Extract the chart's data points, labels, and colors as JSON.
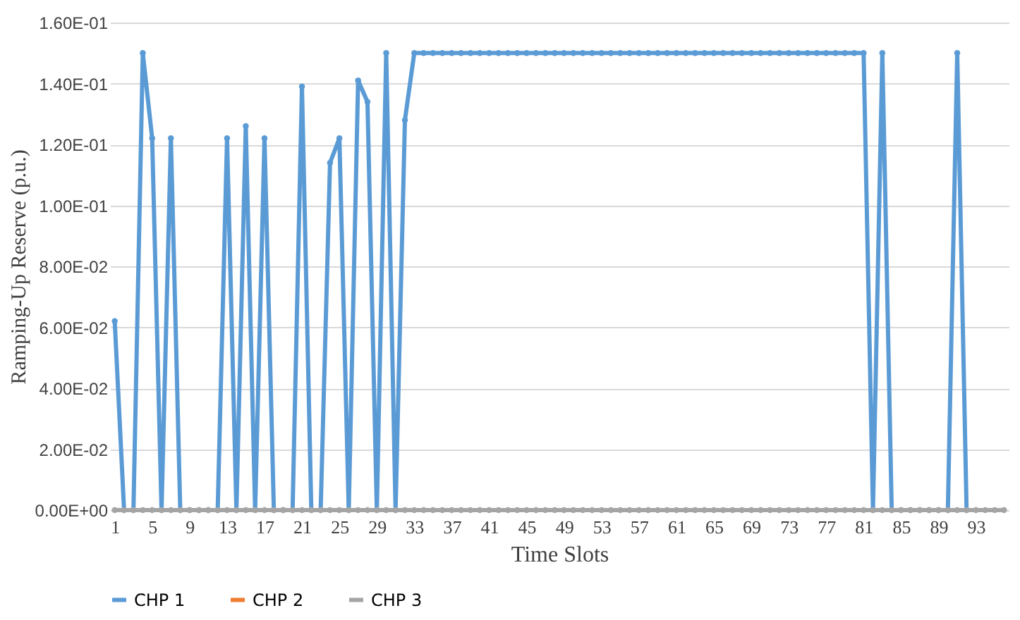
{
  "chart_data": {
    "type": "line",
    "xlabel": "Time Slots",
    "ylabel": "Ramping-Up Reserve (p.u.)",
    "categories": [
      "1",
      null,
      null,
      null,
      "5",
      null,
      null,
      null,
      "9",
      null,
      null,
      null,
      "13",
      null,
      null,
      null,
      "17",
      null,
      null,
      null,
      "21",
      null,
      null,
      null,
      "25",
      null,
      null,
      null,
      "29",
      null,
      null,
      null,
      "33",
      null,
      null,
      null,
      "37",
      null,
      null,
      null,
      "41",
      null,
      null,
      null,
      "45",
      null,
      null,
      null,
      "49",
      null,
      null,
      null,
      "53",
      null,
      null,
      null,
      "57",
      null,
      null,
      null,
      "61",
      null,
      null,
      null,
      "65",
      null,
      null,
      null,
      "69",
      null,
      null,
      null,
      "73",
      null,
      null,
      null,
      "77",
      null,
      null,
      null,
      "81",
      null,
      null,
      null,
      "85",
      null,
      null,
      null,
      "89",
      null,
      null,
      null,
      "93",
      null,
      null,
      null
    ],
    "series": [
      {
        "name": "CHP 1",
        "color": "#5b9bd5",
        "values": [
          0.062,
          0,
          0,
          0.15,
          0.122,
          0,
          0.122,
          0,
          0,
          0,
          0,
          0,
          0.122,
          0,
          0.126,
          0,
          0.122,
          0,
          0,
          0,
          0.139,
          0,
          0,
          0.114,
          0.122,
          0,
          0.141,
          0.134,
          0,
          0.15,
          0,
          0.128,
          0.15,
          0.15,
          0.15,
          0.15,
          0.15,
          0.15,
          0.15,
          0.15,
          0.15,
          0.15,
          0.15,
          0.15,
          0.15,
          0.15,
          0.15,
          0.15,
          0.15,
          0.15,
          0.15,
          0.15,
          0.15,
          0.15,
          0.15,
          0.15,
          0.15,
          0.15,
          0.15,
          0.15,
          0.15,
          0.15,
          0.15,
          0.15,
          0.15,
          0.15,
          0.15,
          0.15,
          0.15,
          0.15,
          0.15,
          0.15,
          0.15,
          0.15,
          0.15,
          0.15,
          0.15,
          0.15,
          0.15,
          0.15,
          0.15,
          0,
          0.15,
          0,
          0,
          0,
          0,
          0,
          0,
          0,
          0.15,
          0,
          null,
          null,
          null,
          null
        ]
      },
      {
        "name": "CHP 2",
        "color": "#ed7d31",
        "values": [
          null,
          null,
          null,
          null,
          null,
          null,
          null,
          null,
          null,
          null,
          null,
          null,
          null,
          null,
          null,
          null,
          null,
          null,
          null,
          null,
          null,
          null,
          null,
          null,
          null,
          null,
          null,
          null,
          null,
          null,
          null,
          null,
          null,
          null,
          null,
          null,
          null,
          null,
          null,
          null,
          null,
          null,
          null,
          null,
          null,
          null,
          null,
          null,
          null,
          null,
          null,
          null,
          null,
          null,
          null,
          null,
          null,
          null,
          null,
          null,
          null,
          null,
          null,
          null,
          null,
          null,
          null,
          null,
          null,
          null,
          null,
          null,
          null,
          null,
          null,
          null,
          null,
          null,
          null,
          null,
          null,
          null,
          null,
          null,
          null,
          null,
          null,
          null,
          null,
          null,
          null,
          null,
          null,
          null,
          null,
          null
        ]
      },
      {
        "name": "CHP 3",
        "color": "#a5a5a5",
        "values": [
          0,
          0,
          0,
          0,
          0,
          0,
          0,
          0,
          0,
          0,
          0,
          0,
          0,
          0,
          0,
          0,
          0,
          0,
          0,
          0,
          0,
          0,
          0,
          0,
          0,
          0,
          0,
          0,
          0,
          0,
          0,
          0,
          0,
          0,
          0,
          0,
          0,
          0,
          0,
          0,
          0,
          0,
          0,
          0,
          0,
          0,
          0,
          0,
          0,
          0,
          0,
          0,
          0,
          0,
          0,
          0,
          0,
          0,
          0,
          0,
          0,
          0,
          0,
          0,
          0,
          0,
          0,
          0,
          0,
          0,
          0,
          0,
          0,
          0,
          0,
          0,
          0,
          0,
          0,
          0,
          0,
          0,
          0,
          0,
          0,
          0,
          0,
          0,
          0,
          0,
          0,
          0,
          0,
          0,
          0,
          0
        ]
      }
    ],
    "ylim": [
      0,
      0.16
    ],
    "yticks": [
      {
        "value": 0,
        "label": "0.00E+00"
      },
      {
        "value": 0.02,
        "label": "2.00E-02"
      },
      {
        "value": 0.04,
        "label": "4.00E-02"
      },
      {
        "value": 0.06,
        "label": "6.00E-02"
      },
      {
        "value": 0.08,
        "label": "8.00E-02"
      },
      {
        "value": 0.1,
        "label": "1.00E-01"
      },
      {
        "value": 0.12,
        "label": "1.20E-01"
      },
      {
        "value": 0.14,
        "label": "1.40E-01"
      },
      {
        "value": 0.16,
        "label": "1.60E-01"
      }
    ],
    "grid": "y",
    "legend": "bottom",
    "marker": "circle",
    "line_style": "solid"
  }
}
